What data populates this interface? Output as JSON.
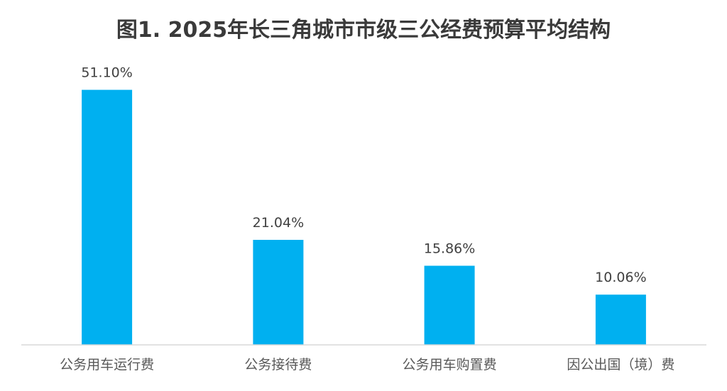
{
  "chart_data": {
    "type": "bar",
    "title": "图1. 2025年长三角城市市级三公经费预算平均结构",
    "categories": [
      "公务用车运行费",
      "公务接待费",
      "公务用车购置费",
      "因公出国（境）费"
    ],
    "values": [
      51.1,
      21.04,
      15.86,
      10.06
    ],
    "value_labels": [
      "51.10%",
      "21.04%",
      "15.86%",
      "10.06%"
    ],
    "unit": "%",
    "ylim": [
      0,
      60
    ],
    "grid": false,
    "legend": "none",
    "xlabel": "",
    "ylabel": ""
  },
  "colors": {
    "bar": "#00b0f0",
    "axis": "#d9d9d9",
    "title": "#3a3a3a",
    "label": "#404040",
    "tick": "#595959"
  }
}
